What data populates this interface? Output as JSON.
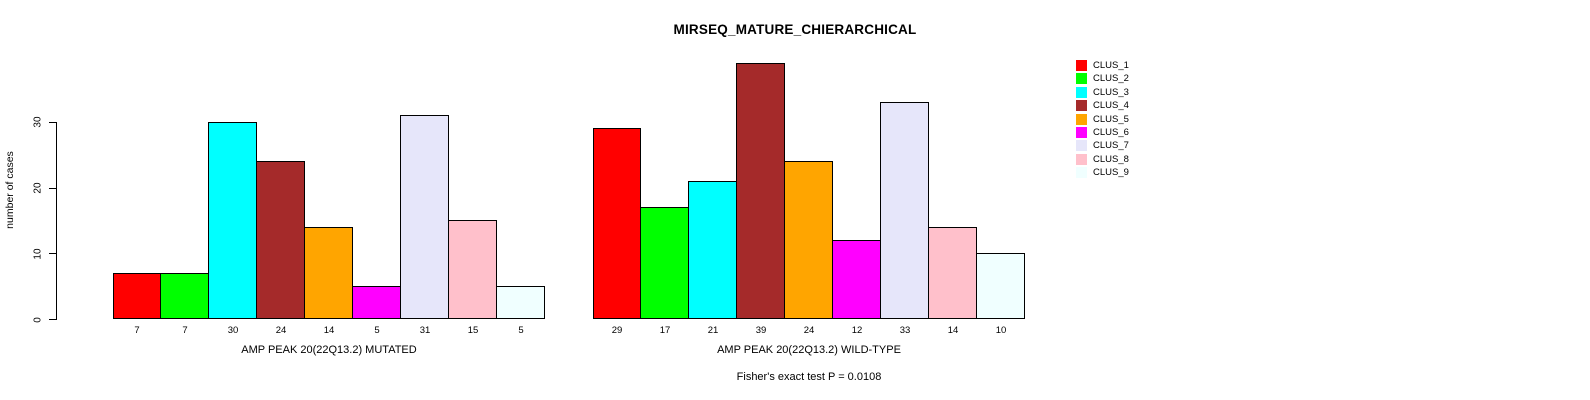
{
  "chart_data": {
    "type": "bar",
    "title": "MIRSEQ_MATURE_CHIERARCHICAL",
    "ylabel": "number of cases",
    "yticks": [
      0,
      10,
      20,
      30
    ],
    "ylim": [
      0,
      40
    ],
    "grid": false,
    "legend_position": "right",
    "categories": [
      "CLUS_1",
      "CLUS_2",
      "CLUS_3",
      "CLUS_4",
      "CLUS_5",
      "CLUS_6",
      "CLUS_7",
      "CLUS_8",
      "CLUS_9"
    ],
    "colors": [
      "#FF0000",
      "#00FF00",
      "#00FFFF",
      "#A52A2A",
      "#FFA500",
      "#FF00FF",
      "#E6E6FA",
      "#FFC0CB",
      "#F0FFFF"
    ],
    "series": [
      {
        "name": "AMP PEAK 20(22Q13.2) MUTATED",
        "values": [
          7,
          7,
          30,
          24,
          14,
          5,
          31,
          15,
          5
        ]
      },
      {
        "name": "AMP PEAK 20(22Q13.2) WILD-TYPE",
        "values": [
          29,
          17,
          21,
          39,
          24,
          12,
          33,
          14,
          10
        ]
      }
    ],
    "annotation": "Fisher's exact test P = 0.0108"
  }
}
